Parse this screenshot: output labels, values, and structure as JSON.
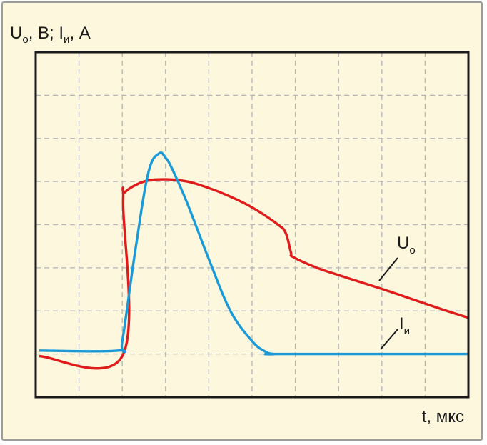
{
  "chart_data": {
    "type": "line",
    "ylabel": {
      "main": "U",
      "sub1": "o",
      "mid": ", В; I",
      "sub2": "и",
      "end": ", А"
    },
    "xlabel": "t, мкс",
    "grid": true,
    "grid_divisions": {
      "x": 10,
      "y": 8
    },
    "xlim": [
      0,
      10
    ],
    "ylim": [
      0,
      8
    ],
    "series": [
      {
        "name": "Uo",
        "label_main": "U",
        "label_sub": "o",
        "color": "#e01b1b",
        "x": [
          0.08,
          2.0,
          2.02,
          2.06,
          2.5,
          3.0,
          3.5,
          4.0,
          4.5,
          5.0,
          5.6,
          5.78,
          5.9,
          5.95,
          6.5,
          7.0,
          7.5,
          8.0,
          8.5,
          9.0,
          9.5,
          10.0
        ],
        "y": [
          0.95,
          0.95,
          4.5,
          4.75,
          5.0,
          5.05,
          5.0,
          4.85,
          4.65,
          4.4,
          4.0,
          3.8,
          3.35,
          3.25,
          3.0,
          2.83,
          2.67,
          2.51,
          2.34,
          2.17,
          2.0,
          1.84
        ]
      },
      {
        "name": "Iи",
        "label_main": "I",
        "label_sub": "и",
        "color": "#1a9ad8",
        "x": [
          0.08,
          1.9,
          2.0,
          2.3,
          2.6,
          2.85,
          3.0,
          3.15,
          3.5,
          4.0,
          4.5,
          5.0,
          5.3,
          5.5,
          5.7,
          10.0
        ],
        "y": [
          1.08,
          1.08,
          1.3,
          3.4,
          5.2,
          5.65,
          5.55,
          5.3,
          4.5,
          3.2,
          2.0,
          1.3,
          1.06,
          1.0,
          1.0,
          1.0
        ]
      }
    ]
  },
  "style": {
    "background": "#fdf7dd",
    "grid_color": "#b4b4b4",
    "axis_color": "#1a1a1a"
  }
}
